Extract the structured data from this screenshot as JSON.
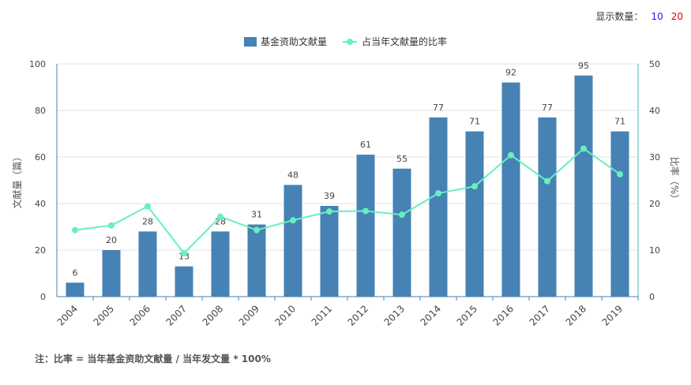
{
  "display_count": {
    "label": "显示数量：",
    "options": [
      {
        "label": "10",
        "color": "#1a1aff"
      },
      {
        "label": "20",
        "color": "#e00000"
      }
    ]
  },
  "note": "注：比率 = 当年基金资助文献量 / 当年发文量 * 100%",
  "chart_data": {
    "type": "bar",
    "categories": [
      "2004",
      "2005",
      "2006",
      "2007",
      "2008",
      "2009",
      "2010",
      "2011",
      "2012",
      "2013",
      "2014",
      "2015",
      "2016",
      "2017",
      "2018",
      "2019"
    ],
    "series": [
      {
        "name": "基金资助文献量",
        "type": "bar",
        "axis": "left",
        "color": "#4682b4",
        "values": [
          6,
          20,
          28,
          13,
          28,
          31,
          48,
          39,
          61,
          55,
          77,
          71,
          92,
          77,
          95,
          71
        ]
      },
      {
        "name": "占当年文献量的比率",
        "type": "line",
        "axis": "right",
        "color": "#66f0c0",
        "values": [
          14.3,
          15.3,
          19.4,
          9.3,
          17.2,
          14.3,
          16.4,
          18.3,
          18.4,
          17.6,
          22.2,
          23.7,
          30.4,
          24.8,
          31.8,
          26.3
        ]
      }
    ],
    "ylabel": "文献量（篇）",
    "y2label": "比率（%）",
    "ylim": [
      0,
      100
    ],
    "y2lim": [
      0,
      50
    ],
    "yticks": [
      0,
      20,
      40,
      60,
      80,
      100
    ],
    "y2ticks": [
      0,
      10,
      20,
      30,
      40,
      50
    ],
    "legend_position": "top-center",
    "grid": true
  }
}
